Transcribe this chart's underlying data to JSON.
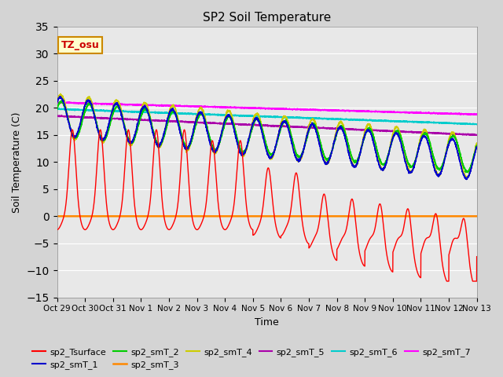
{
  "title": "SP2 Soil Temperature",
  "xlabel": "Time",
  "ylabel": "Soil Temperature (C)",
  "ylim": [
    -15,
    35
  ],
  "yticks": [
    -15,
    -10,
    -5,
    0,
    5,
    10,
    15,
    20,
    25,
    30,
    35
  ],
  "xtick_labels": [
    "Oct 29",
    "Oct 30",
    "Oct 31",
    "Nov 1",
    "Nov 2",
    "Nov 3",
    "Nov 4",
    "Nov 5",
    "Nov 6",
    "Nov 7",
    "Nov 8",
    "Nov 9",
    "Nov 10",
    "Nov 11",
    "Nov 12",
    "Nov 13"
  ],
  "background_color": "#d4d4d4",
  "plot_bg_color": "#e8e8e8",
  "tz_label": "TZ_osu",
  "tz_bg": "#ffffcc",
  "tz_border": "#cc8800",
  "line_colors": {
    "sp2_Tsurface": "#ff0000",
    "sp2_smT_1": "#0000cc",
    "sp2_smT_2": "#00cc00",
    "sp2_smT_3": "#ff8800",
    "sp2_smT_4": "#cccc00",
    "sp2_smT_5": "#aa00aa",
    "sp2_smT_6": "#00cccc",
    "sp2_smT_7": "#ff00ff"
  },
  "legend_order": [
    "sp2_Tsurface",
    "sp2_smT_1",
    "sp2_smT_2",
    "sp2_smT_3",
    "sp2_smT_4",
    "sp2_smT_5",
    "sp2_smT_6",
    "sp2_smT_7"
  ]
}
